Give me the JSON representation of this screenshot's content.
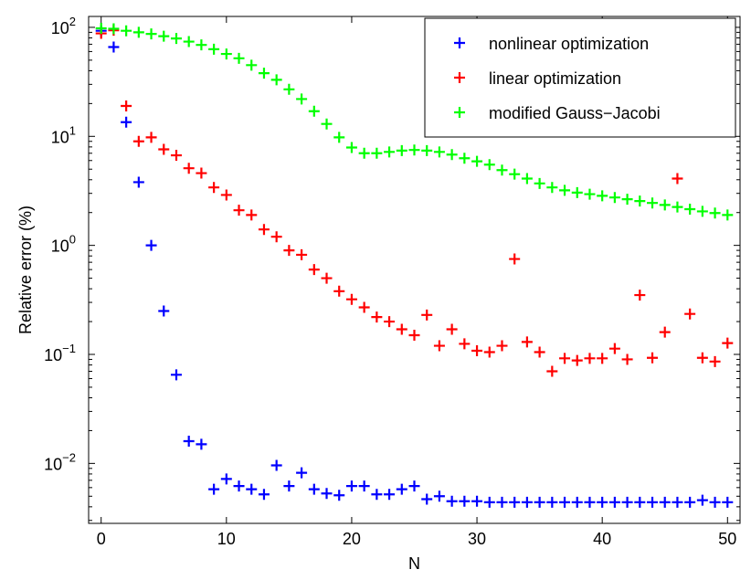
{
  "chart_data": {
    "type": "scatter",
    "xlabel": "N",
    "ylabel": "Relative error (%)",
    "xlim": [
      -1,
      51
    ],
    "ylim_log10": [
      -2.55,
      2.1
    ],
    "y_scale": "log",
    "grid": false,
    "legend_position": "top-right",
    "x_ticks": [
      0,
      10,
      20,
      30,
      40,
      50
    ],
    "x_tick_labels": [
      "0",
      "10",
      "20",
      "30",
      "40",
      "50"
    ],
    "y_tick_exponents": [
      -2,
      -1,
      0,
      1,
      2
    ],
    "y_tick_base": "10",
    "x": [
      0,
      1,
      2,
      3,
      4,
      5,
      6,
      7,
      8,
      9,
      10,
      11,
      12,
      13,
      14,
      15,
      16,
      17,
      18,
      19,
      20,
      21,
      22,
      23,
      24,
      25,
      26,
      27,
      28,
      29,
      30,
      31,
      32,
      33,
      34,
      35,
      36,
      37,
      38,
      39,
      40,
      41,
      42,
      43,
      44,
      45,
      46,
      47,
      48,
      49,
      50
    ],
    "series": [
      {
        "name": "nonlinear optimization",
        "color": "#0000ff",
        "values": [
          93,
          66,
          13.5,
          3.8,
          1.0,
          0.25,
          0.065,
          0.016,
          0.015,
          0.0058,
          0.0072,
          0.0062,
          0.0058,
          0.0052,
          0.0096,
          0.0062,
          0.0082,
          0.0058,
          0.0053,
          0.0051,
          0.0062,
          0.0062,
          0.0052,
          0.0052,
          0.0058,
          0.0062,
          0.0047,
          0.005,
          0.0045,
          0.0045,
          0.0045,
          0.0044,
          0.0044,
          0.0044,
          0.0044,
          0.0044,
          0.0044,
          0.0044,
          0.0044,
          0.0044,
          0.0044,
          0.0044,
          0.0044,
          0.0044,
          0.0044,
          0.0044,
          0.0044,
          0.0044,
          0.0046,
          0.0044,
          0.0044
        ]
      },
      {
        "name": "linear optimization",
        "color": "#ff0000",
        "values": [
          88,
          94,
          19,
          9.0,
          9.8,
          7.6,
          6.7,
          5.1,
          4.6,
          3.4,
          2.9,
          2.1,
          1.9,
          1.4,
          1.2,
          0.9,
          0.82,
          0.6,
          0.5,
          0.38,
          0.32,
          0.27,
          0.22,
          0.2,
          0.17,
          0.15,
          0.23,
          0.12,
          0.17,
          0.125,
          0.108,
          0.105,
          0.12,
          0.75,
          0.13,
          0.105,
          0.07,
          0.092,
          0.088,
          0.092,
          0.092,
          0.113,
          0.09,
          0.35,
          0.093,
          0.16,
          4.1,
          0.235,
          0.093,
          0.086,
          0.127
        ]
      },
      {
        "name": "modified Gauss−Jacobi",
        "color": "#00ff00",
        "values": [
          98,
          97,
          93,
          90,
          87,
          83,
          79,
          74,
          69,
          63,
          57,
          52,
          45,
          38,
          33,
          27,
          22,
          17,
          13,
          9.8,
          7.9,
          7.0,
          7.0,
          7.2,
          7.4,
          7.5,
          7.4,
          7.2,
          6.8,
          6.3,
          5.9,
          5.5,
          4.9,
          4.5,
          4.1,
          3.7,
          3.4,
          3.2,
          3.05,
          2.95,
          2.85,
          2.75,
          2.65,
          2.55,
          2.45,
          2.35,
          2.25,
          2.15,
          2.05,
          1.98,
          1.9
        ]
      }
    ]
  }
}
